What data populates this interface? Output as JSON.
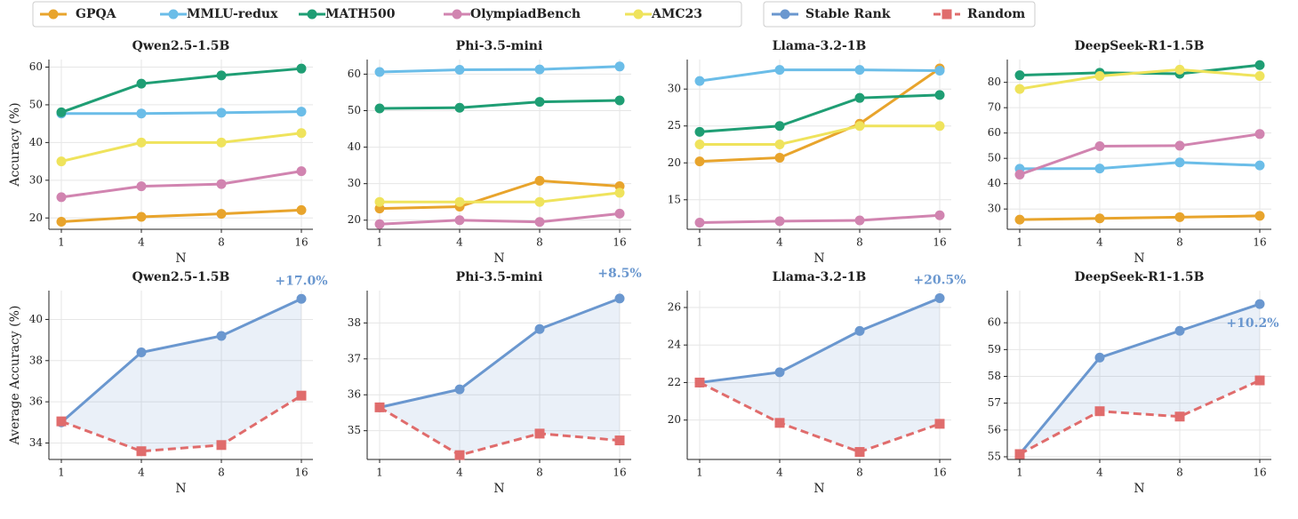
{
  "chart_data": [
    {
      "type": "line",
      "title": "Qwen2.5-1.5B",
      "ylabel": "Accuracy (%)",
      "xlabel": "N",
      "categories": [
        "1",
        "4",
        "8",
        "16"
      ],
      "ylim": [
        17,
        62
      ],
      "yticks": [
        20,
        30,
        40,
        50,
        60
      ],
      "grid": true,
      "series": [
        {
          "name": "GPQA",
          "color": "#e8a42c",
          "values": [
            19.0,
            20.3,
            21.1,
            22.1
          ]
        },
        {
          "name": "MMLU-redux",
          "color": "#6bbde8",
          "values": [
            47.7,
            47.7,
            47.9,
            48.2
          ]
        },
        {
          "name": "MATH500",
          "color": "#1f9e74",
          "values": [
            48.0,
            55.6,
            57.8,
            59.6
          ]
        },
        {
          "name": "OlympiadBench",
          "color": "#d184b0",
          "values": [
            25.5,
            28.4,
            29.0,
            32.4
          ]
        },
        {
          "name": "AMC23",
          "color": "#efe35c",
          "values": [
            35.0,
            40.0,
            40.0,
            42.5
          ]
        }
      ]
    },
    {
      "type": "line",
      "title": "Phi-3.5-mini",
      "xlabel": "N",
      "categories": [
        "1",
        "4",
        "8",
        "16"
      ],
      "ylim": [
        17.5,
        64
      ],
      "yticks": [
        20,
        30,
        40,
        50,
        60
      ],
      "grid": true,
      "series": [
        {
          "color": "#e8a42c",
          "values": [
            23.2,
            23.7,
            30.8,
            29.3
          ]
        },
        {
          "color": "#6bbde8",
          "values": [
            60.6,
            61.2,
            61.3,
            62.1
          ]
        },
        {
          "color": "#1f9e74",
          "values": [
            50.6,
            50.8,
            52.4,
            52.8
          ]
        },
        {
          "color": "#d184b0",
          "values": [
            18.9,
            20.0,
            19.5,
            21.8
          ]
        },
        {
          "color": "#efe35c",
          "values": [
            25.0,
            25.0,
            25.0,
            27.5
          ]
        }
      ]
    },
    {
      "type": "line",
      "title": "Llama-3.2-1B",
      "xlabel": "N",
      "categories": [
        "1",
        "4",
        "8",
        "16"
      ],
      "ylim": [
        11,
        34
      ],
      "yticks": [
        15,
        20,
        25,
        30
      ],
      "grid": true,
      "series": [
        {
          "color": "#e8a42c",
          "values": [
            20.2,
            20.7,
            25.3,
            32.8
          ]
        },
        {
          "color": "#6bbde8",
          "values": [
            31.1,
            32.6,
            32.6,
            32.5
          ]
        },
        {
          "color": "#1f9e74",
          "values": [
            24.2,
            25.0,
            28.8,
            29.2
          ]
        },
        {
          "color": "#d184b0",
          "values": [
            11.9,
            12.1,
            12.2,
            12.9
          ]
        },
        {
          "color": "#efe35c",
          "values": [
            22.5,
            22.5,
            25.0,
            25.0
          ]
        }
      ]
    },
    {
      "type": "line",
      "title": "DeepSeek-R1-1.5B",
      "xlabel": "N",
      "categories": [
        "1",
        "4",
        "8",
        "16"
      ],
      "ylim": [
        22,
        89
      ],
      "yticks": [
        30,
        40,
        50,
        60,
        70,
        80
      ],
      "grid": true,
      "series": [
        {
          "color": "#e8a42c",
          "values": [
            25.8,
            26.3,
            26.8,
            27.3
          ]
        },
        {
          "color": "#6bbde8",
          "values": [
            45.9,
            46.0,
            48.4,
            47.2
          ]
        },
        {
          "color": "#1f9e74",
          "values": [
            82.8,
            83.8,
            83.4,
            86.8
          ]
        },
        {
          "color": "#d184b0",
          "values": [
            43.6,
            54.8,
            55.0,
            59.6
          ]
        },
        {
          "color": "#efe35c",
          "values": [
            77.4,
            82.5,
            85.0,
            82.5
          ]
        }
      ]
    },
    {
      "type": "line",
      "title": "Qwen2.5-1.5B",
      "ylabel": "Average Accuracy (%)",
      "xlabel": "N",
      "categories": [
        "1",
        "4",
        "8",
        "16"
      ],
      "ylim": [
        33.2,
        41.4
      ],
      "yticks": [
        34,
        36,
        38,
        40
      ],
      "grid": true,
      "fill_between": true,
      "annotation": "+17.0%",
      "series": [
        {
          "name": "Stable Rank",
          "color": "#6a97cf",
          "marker": "circle",
          "values": [
            35.0,
            38.4,
            39.2,
            41.0
          ]
        },
        {
          "name": "Random",
          "color": "#e06c6c",
          "marker": "square",
          "dashed": true,
          "values": [
            35.05,
            33.6,
            33.9,
            36.3
          ]
        }
      ]
    },
    {
      "type": "line",
      "title": "Phi-3.5-mini",
      "xlabel": "N",
      "categories": [
        "1",
        "4",
        "8",
        "16"
      ],
      "ylim": [
        34.2,
        38.9
      ],
      "yticks": [
        35,
        36,
        37,
        38
      ],
      "grid": true,
      "fill_between": true,
      "annotation": "+8.5%",
      "series": [
        {
          "color": "#6a97cf",
          "marker": "circle",
          "values": [
            35.65,
            36.15,
            37.83,
            38.68
          ]
        },
        {
          "color": "#e06c6c",
          "marker": "square",
          "dashed": true,
          "values": [
            35.65,
            34.32,
            34.92,
            34.73
          ]
        }
      ]
    },
    {
      "type": "line",
      "title": "Llama-3.2-1B",
      "xlabel": "N",
      "categories": [
        "1",
        "4",
        "8",
        "16"
      ],
      "ylim": [
        17.9,
        26.9
      ],
      "yticks": [
        20,
        22,
        24,
        26
      ],
      "grid": true,
      "fill_between": true,
      "annotation": "+20.5%",
      "series": [
        {
          "color": "#6a97cf",
          "marker": "circle",
          "values": [
            22.0,
            22.55,
            24.75,
            26.5
          ]
        },
        {
          "color": "#e06c6c",
          "marker": "square",
          "dashed": true,
          "values": [
            22.0,
            19.85,
            18.3,
            19.8
          ]
        }
      ]
    },
    {
      "type": "line",
      "title": "DeepSeek-R1-1.5B",
      "xlabel": "N",
      "categories": [
        "1",
        "4",
        "8",
        "16"
      ],
      "ylim": [
        54.9,
        61.2
      ],
      "yticks": [
        55,
        56,
        57,
        58,
        59,
        60
      ],
      "grid": true,
      "fill_between": true,
      "annotation": "+10.2%",
      "series": [
        {
          "color": "#6a97cf",
          "marker": "circle",
          "values": [
            55.1,
            58.7,
            59.7,
            60.7
          ]
        },
        {
          "color": "#e06c6c",
          "marker": "square",
          "dashed": true,
          "values": [
            55.1,
            56.7,
            56.5,
            57.85
          ]
        }
      ]
    }
  ]
}
